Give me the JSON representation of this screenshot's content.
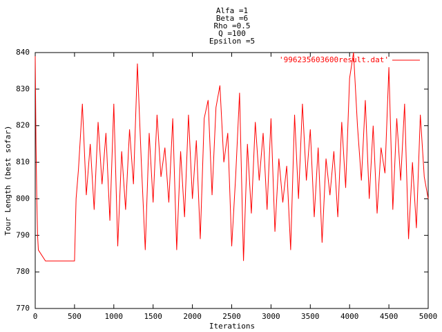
{
  "chart_data": {
    "type": "line",
    "title": [
      "Alfa =1",
      "Beta =6",
      "Rho =0.5",
      "Q =100",
      "Epsilon =5"
    ],
    "xlabel": "Iterations",
    "ylabel": "Tour Length (best sofar)",
    "xlim": [
      0,
      5000
    ],
    "ylim": [
      770,
      840
    ],
    "xticks": [
      0,
      500,
      1000,
      1500,
      2000,
      2500,
      3000,
      3500,
      4000,
      4500,
      5000
    ],
    "yticks": [
      770,
      780,
      790,
      800,
      810,
      820,
      830,
      840
    ],
    "legend": "top-right",
    "series": [
      {
        "name": "'996235603600result.dat'",
        "color": "#ff0000",
        "x": [
          0,
          10,
          20,
          30,
          40,
          130,
          500,
          520,
          550,
          600,
          650,
          700,
          750,
          800,
          850,
          900,
          950,
          1000,
          1050,
          1100,
          1150,
          1200,
          1250,
          1300,
          1350,
          1400,
          1450,
          1500,
          1550,
          1600,
          1650,
          1700,
          1750,
          1800,
          1850,
          1900,
          1950,
          2000,
          2050,
          2100,
          2150,
          2200,
          2250,
          2300,
          2350,
          2400,
          2450,
          2500,
          2550,
          2600,
          2650,
          2700,
          2750,
          2800,
          2850,
          2900,
          2950,
          3000,
          3050,
          3100,
          3150,
          3200,
          3250,
          3300,
          3350,
          3400,
          3450,
          3500,
          3550,
          3600,
          3650,
          3700,
          3750,
          3800,
          3850,
          3900,
          3950,
          4000,
          4050,
          4100,
          4150,
          4200,
          4250,
          4300,
          4350,
          4400,
          4450,
          4500,
          4550,
          4600,
          4650,
          4700,
          4750,
          4800,
          4850,
          4900,
          4950,
          5000
        ],
        "values": [
          839,
          815,
          800,
          790,
          786,
          783,
          783,
          800,
          808,
          826,
          801,
          815,
          797,
          821,
          804,
          818,
          794,
          826,
          787,
          813,
          797,
          819,
          804,
          837,
          810,
          786,
          818,
          799,
          823,
          806,
          814,
          799,
          822,
          786,
          813,
          795,
          823,
          800,
          816,
          789,
          822,
          827,
          801,
          825,
          831,
          810,
          818,
          787,
          806,
          829,
          783,
          815,
          796,
          821,
          805,
          818,
          797,
          822,
          791,
          811,
          799,
          809,
          786,
          823,
          800,
          826,
          805,
          819,
          795,
          814,
          788,
          811,
          801,
          813,
          795,
          821,
          803,
          833,
          840,
          820,
          805,
          827,
          800,
          820,
          796,
          814,
          807,
          836,
          797,
          822,
          805,
          826,
          789,
          810,
          792,
          823,
          806,
          800
        ]
      }
    ]
  }
}
